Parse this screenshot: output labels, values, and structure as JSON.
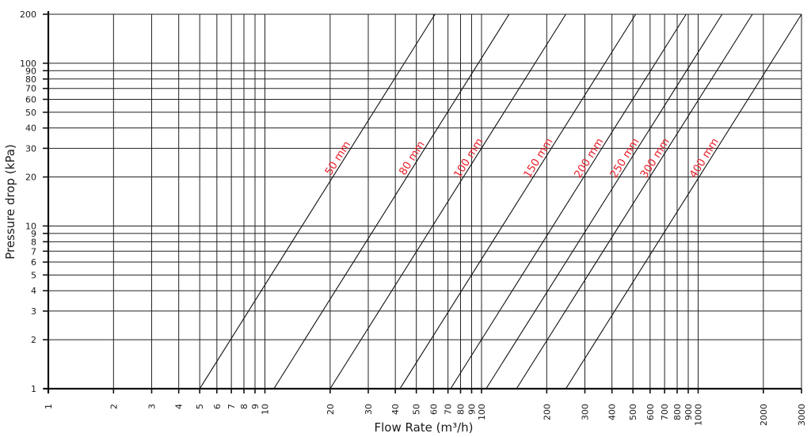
{
  "chart_data": {
    "type": "line",
    "title": "",
    "xlabel": "Flow Rate (m³/h)",
    "ylabel": "Pressure drop (kPa)",
    "x_scale": "log",
    "y_scale": "log",
    "xlim": [
      1,
      3000
    ],
    "ylim": [
      1,
      200
    ],
    "x_ticks": [
      1,
      2,
      3,
      4,
      5,
      6,
      7,
      8,
      9,
      10,
      20,
      30,
      40,
      50,
      60,
      70,
      80,
      90,
      100,
      200,
      300,
      400,
      500,
      600,
      700,
      800,
      900,
      1000,
      2000,
      3000
    ],
    "y_ticks": [
      1,
      2,
      3,
      4,
      5,
      6,
      7,
      8,
      9,
      10,
      20,
      30,
      40,
      50,
      60,
      70,
      80,
      90,
      100,
      200
    ],
    "grid": true,
    "label_color": "#e8202a",
    "series": [
      {
        "name": "50 mm",
        "x": [
          5,
          61
        ],
        "y": [
          1,
          200
        ]
      },
      {
        "name": "80 mm",
        "x": [
          11,
          134
        ],
        "y": [
          1,
          200
        ]
      },
      {
        "name": "100 mm",
        "x": [
          20,
          245
        ],
        "y": [
          1,
          200
        ]
      },
      {
        "name": "150 mm",
        "x": [
          42,
          515
        ],
        "y": [
          1,
          200
        ]
      },
      {
        "name": "200 mm",
        "x": [
          72,
          880
        ],
        "y": [
          1,
          200
        ]
      },
      {
        "name": "250 mm",
        "x": [
          105,
          1290
        ],
        "y": [
          1,
          200
        ]
      },
      {
        "name": "300 mm",
        "x": [
          145,
          1780
        ],
        "y": [
          1,
          200
        ]
      },
      {
        "name": "400 mm",
        "x": [
          245,
          3000
        ],
        "y": [
          1,
          200
        ]
      }
    ]
  }
}
